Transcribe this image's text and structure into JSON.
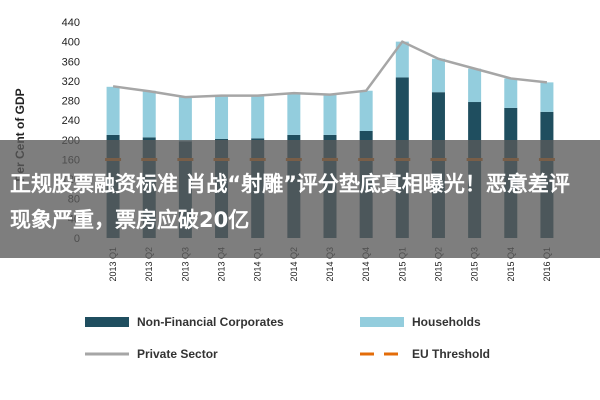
{
  "chart_data": {
    "type": "bar",
    "stacked": true,
    "ylabel": "Per Cent of GDP",
    "ylim": [
      0,
      440
    ],
    "yticks": [
      0,
      40,
      80,
      120,
      160,
      200,
      240,
      280,
      320,
      360,
      400,
      440
    ],
    "categories": [
      "2013 Q1",
      "2013 Q2",
      "2013 Q3",
      "2013 Q4",
      "2014 Q1",
      "2014 Q2",
      "2014 Q3",
      "2014 Q4",
      "2015 Q1",
      "2015 Q2",
      "2015 Q3",
      "2015 Q4",
      "2016 Q1"
    ],
    "series": [
      {
        "name": "Non-Financial Corporates",
        "color": "#1f4e5f",
        "kind": "bar",
        "values": [
          210,
          205,
          197,
          202,
          203,
          210,
          210,
          218,
          327,
          297,
          277,
          265,
          257
        ]
      },
      {
        "name": "Households",
        "color": "#93cddd",
        "kind": "bar",
        "values": [
          98,
          95,
          90,
          88,
          88,
          85,
          82,
          82,
          73,
          68,
          68,
          60,
          60
        ]
      },
      {
        "name": "Private Sector",
        "color": "#a6a6a6",
        "kind": "line",
        "values": [
          309,
          299,
          287,
          290,
          290,
          295,
          292,
          300,
          400,
          365,
          345,
          325,
          317
        ]
      },
      {
        "name": "EU Threshold",
        "color": "#e36c09",
        "kind": "dashed",
        "values": [
          160,
          160,
          160,
          160,
          160,
          160,
          160,
          160,
          160,
          160,
          160,
          160,
          160
        ]
      }
    ],
    "grid": false,
    "legend_position": "bottom"
  },
  "overlay": {
    "headline": "正规股票融资标准 肖战“射雕”评分垫底真相曝光！恶意差评现象严重，票房应破20亿"
  }
}
